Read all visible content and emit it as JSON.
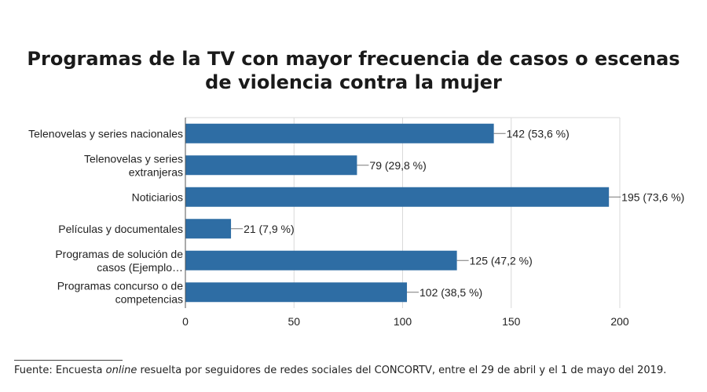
{
  "title_line1": "Programas de la TV con mayor frecuencia de casos o escenas",
  "title_line2": "de violencia contra la mujer",
  "source": {
    "prefix": "Fuente: Encuesta ",
    "emphasis": "online",
    "suffix": " resuelta por seguidores de redes sociales del CONCORTV, entre el 29 de abril y el 1 de mayo del 2019."
  },
  "colors": {
    "bar": "#2e6da4",
    "grid": "#d9d9d9",
    "axis": "#555555",
    "text": "#222222"
  },
  "chart_data": {
    "type": "bar",
    "orientation": "horizontal",
    "categories": [
      [
        "Telenovelas y series nacionales"
      ],
      [
        "Telenovelas y series",
        "extranjeras"
      ],
      [
        "Noticiarios"
      ],
      [
        "Películas y documentales"
      ],
      [
        "Programas de solución de",
        "casos (Ejemplo…"
      ],
      [
        "Programas concurso o de",
        "competencias"
      ]
    ],
    "values": [
      142,
      79,
      195,
      21,
      125,
      102
    ],
    "data_labels": [
      "142 (53,6 %)",
      "79 (29,8 %)",
      "195 (73,6 %)",
      "21 (7,9 %)",
      "125 (47,2 %)",
      "102 (38,5 %)"
    ],
    "xlim": [
      0,
      200
    ],
    "xticks": [
      0,
      50,
      100,
      150,
      200
    ],
    "grid": true
  }
}
